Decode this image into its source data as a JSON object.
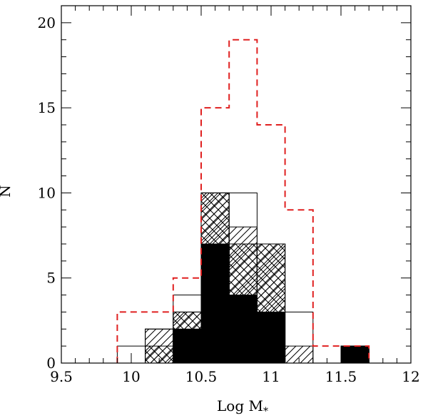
{
  "chart_data": {
    "type": "bar",
    "title": "",
    "xlabel": "Log M",
    "xlabel_subscript": "*",
    "ylabel": "N",
    "xlim": [
      9.5,
      12
    ],
    "ylim": [
      0,
      21
    ],
    "xticks": [
      9.5,
      10,
      10.5,
      11,
      11.5,
      12
    ],
    "xtick_labels": [
      "9.5",
      "10",
      "10.5",
      "11",
      "11.5",
      "12"
    ],
    "yticks": [
      0,
      5,
      10,
      15,
      20
    ],
    "ytick_labels": [
      "0",
      "5",
      "10",
      "15",
      "20"
    ],
    "bin_width": 0.2,
    "bin_starts": [
      9.9,
      10.1,
      10.3,
      10.5,
      10.7,
      10.9,
      11.1,
      11.3,
      11.5
    ],
    "series": [
      {
        "style": "dashed-red-outline",
        "color": "#e02020",
        "values": [
          3,
          3,
          5,
          15,
          19,
          14,
          9,
          1,
          1
        ]
      },
      {
        "style": "thin-outline",
        "color": "#000000",
        "values": [
          1,
          2,
          4,
          10,
          10,
          7,
          3,
          0,
          1
        ]
      },
      {
        "style": "hatched-diagonal",
        "color": "#000000",
        "values": [
          0,
          2,
          3,
          10,
          8,
          7,
          1,
          0,
          1
        ]
      },
      {
        "style": "hatched-cross",
        "color": "#000000",
        "values": [
          0,
          1,
          3,
          10,
          7,
          7,
          0,
          0,
          1
        ]
      },
      {
        "style": "solid-black",
        "color": "#000000",
        "values": [
          0,
          0,
          2,
          7,
          4,
          3,
          0,
          0,
          1
        ]
      }
    ]
  }
}
